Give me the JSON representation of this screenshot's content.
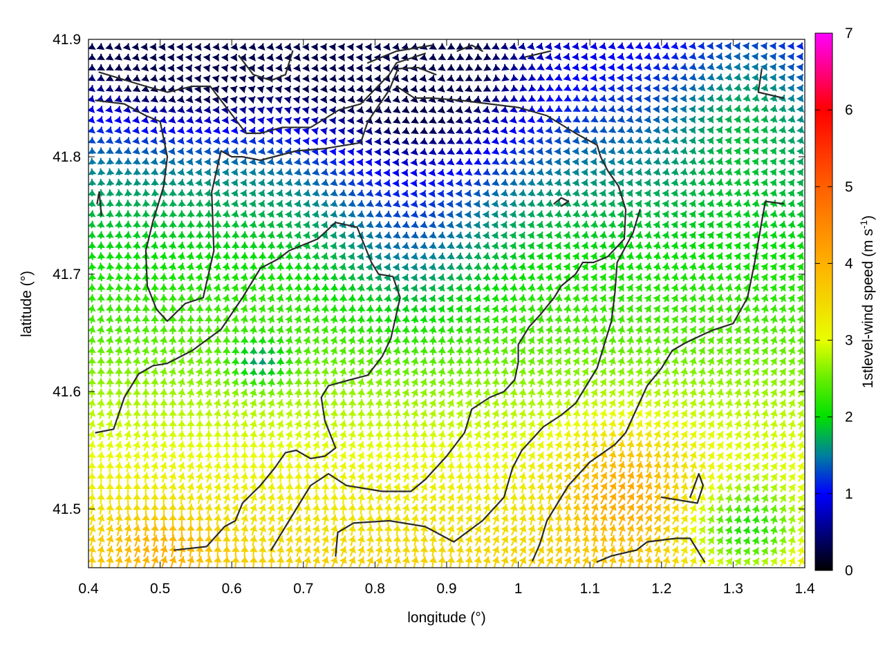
{
  "chart_data": {
    "type": "vector-field",
    "title": "",
    "xlabel": "longitude (°)",
    "ylabel": "latitude (°)",
    "xlim": [
      0.4,
      1.4
    ],
    "ylim": [
      41.45,
      41.9
    ],
    "xticks": [
      "0.4",
      "0.5",
      "0.6",
      "0.7",
      "0.8",
      "0.9",
      "1",
      "1.1",
      "1.2",
      "1.3",
      "1.4"
    ],
    "yticks": [
      "41.5",
      "41.6",
      "41.7",
      "41.8",
      "41.9"
    ],
    "grid": false,
    "colorbar": {
      "label_main": "1stlevel-wind speed (m s",
      "label_sup": "-1",
      "label_end": ")",
      "range": [
        0,
        7
      ],
      "ticks": [
        "0",
        "1",
        "2",
        "3",
        "4",
        "5",
        "6",
        "7"
      ],
      "colormap": [
        {
          "value": 0,
          "color": "#000000"
        },
        {
          "value": 1,
          "color": "#0000ff"
        },
        {
          "value": 1.5,
          "color": "#007f9f"
        },
        {
          "value": 2,
          "color": "#00e000"
        },
        {
          "value": 2.5,
          "color": "#66ee00"
        },
        {
          "value": 3,
          "color": "#e8ff00"
        },
        {
          "value": 4,
          "color": "#ffb000"
        },
        {
          "value": 5,
          "color": "#ff6000"
        },
        {
          "value": 6,
          "color": "#ff0000"
        },
        {
          "value": 7,
          "color": "#ff00ff"
        }
      ]
    },
    "vector_grid": {
      "lon_range": [
        0.405,
        1.395
      ],
      "lat_range": [
        41.455,
        41.895
      ],
      "nx": 80,
      "ny": 50,
      "dominant_direction": "north to north-east",
      "speed_regions": [
        {
          "region": "north-west",
          "speed": 1.0
        },
        {
          "region": "north-centre",
          "speed": 0.8
        },
        {
          "region": "centre",
          "speed": 2.0
        },
        {
          "region": "south",
          "speed": 3.4
        },
        {
          "region": "south-east",
          "speed": 4.2
        }
      ]
    },
    "contour_color": "#2a2a2a",
    "contours": [
      [
        [
          0.41,
          41.848
        ],
        [
          0.45,
          41.845
        ],
        [
          0.48,
          41.835
        ],
        [
          0.5,
          41.83
        ],
        [
          0.51,
          41.8
        ],
        [
          0.505,
          41.775
        ],
        [
          0.49,
          41.745
        ],
        [
          0.48,
          41.72
        ],
        [
          0.482,
          41.69
        ],
        [
          0.495,
          41.67
        ],
        [
          0.51,
          41.66
        ],
        [
          0.535,
          41.675
        ],
        [
          0.56,
          41.68
        ],
        [
          0.575,
          41.72
        ],
        [
          0.572,
          41.77
        ],
        [
          0.585,
          41.805
        ],
        [
          0.6,
          41.8
        ],
        [
          0.615,
          41.8
        ],
        [
          0.64,
          41.797
        ],
        [
          0.69,
          41.805
        ],
        [
          0.73,
          41.807
        ],
        [
          0.78,
          41.812
        ],
        [
          0.79,
          41.83
        ],
        [
          0.82,
          41.857
        ],
        [
          0.832,
          41.875
        ],
        [
          0.86,
          41.876
        ],
        [
          0.885,
          41.87
        ]
      ],
      [
        [
          0.415,
          41.872
        ],
        [
          0.48,
          41.86
        ],
        [
          0.51,
          41.855
        ],
        [
          0.545,
          41.86
        ],
        [
          0.57,
          41.86
        ],
        [
          0.62,
          41.82
        ],
        [
          0.64,
          41.82
        ],
        [
          0.67,
          41.825
        ],
        [
          0.71,
          41.825
        ],
        [
          0.75,
          41.84
        ],
        [
          0.78,
          41.845
        ],
        [
          0.82,
          41.87
        ],
        [
          0.83,
          41.88
        ],
        [
          0.87,
          41.888
        ]
      ],
      [
        [
          0.412,
          41.76
        ],
        [
          0.415,
          41.77
        ],
        [
          0.418,
          41.75
        ]
      ],
      [
        [
          0.61,
          41.886
        ],
        [
          0.63,
          41.87
        ],
        [
          0.655,
          41.865
        ],
        [
          0.675,
          41.87
        ],
        [
          0.685,
          41.89
        ]
      ],
      [
        [
          0.79,
          41.88
        ],
        [
          0.83,
          41.89
        ],
        [
          0.88,
          41.895
        ]
      ],
      [
        [
          0.915,
          41.89
        ],
        [
          0.935,
          41.895
        ],
        [
          0.95,
          41.89
        ]
      ],
      [
        [
          1.01,
          41.885
        ],
        [
          1.045,
          41.89
        ]
      ],
      [
        [
          1.34,
          41.875
        ],
        [
          1.335,
          41.855
        ],
        [
          1.37,
          41.85
        ]
      ],
      [
        [
          0.41,
          41.565
        ],
        [
          0.435,
          41.568
        ],
        [
          0.45,
          41.595
        ],
        [
          0.47,
          41.615
        ],
        [
          0.49,
          41.622
        ],
        [
          0.51,
          41.624
        ],
        [
          0.545,
          41.635
        ],
        [
          0.585,
          41.653
        ],
        [
          0.615,
          41.68
        ],
        [
          0.64,
          41.705
        ],
        [
          0.665,
          41.713
        ],
        [
          0.68,
          41.72
        ],
        [
          0.72,
          41.73
        ],
        [
          0.745,
          41.744
        ],
        [
          0.775,
          41.74
        ],
        [
          0.795,
          41.71
        ],
        [
          0.805,
          41.7
        ],
        [
          0.825,
          41.698
        ],
        [
          0.835,
          41.68
        ],
        [
          0.822,
          41.645
        ],
        [
          0.81,
          41.63
        ],
        [
          0.79,
          41.614
        ],
        [
          0.765,
          41.61
        ],
        [
          0.735,
          41.605
        ],
        [
          0.725,
          41.595
        ],
        [
          0.73,
          41.575
        ],
        [
          0.745,
          41.552
        ],
        [
          0.73,
          41.545
        ],
        [
          0.71,
          41.543
        ],
        [
          0.69,
          41.55
        ],
        [
          0.675,
          41.548
        ],
        [
          0.66,
          41.535
        ],
        [
          0.64,
          41.52
        ],
        [
          0.615,
          41.505
        ],
        [
          0.605,
          41.49
        ],
        [
          0.59,
          41.485
        ],
        [
          0.565,
          41.468
        ],
        [
          0.52,
          41.465
        ]
      ],
      [
        [
          0.655,
          41.465
        ],
        [
          0.69,
          41.5
        ],
        [
          0.71,
          41.52
        ],
        [
          0.735,
          41.53
        ],
        [
          0.76,
          41.52
        ],
        [
          0.81,
          41.515
        ],
        [
          0.85,
          41.515
        ],
        [
          0.87,
          41.525
        ],
        [
          0.885,
          41.535
        ],
        [
          0.9,
          41.545
        ],
        [
          0.925,
          41.565
        ],
        [
          0.935,
          41.585
        ],
        [
          0.96,
          41.595
        ],
        [
          0.98,
          41.6
        ],
        [
          0.995,
          41.61
        ],
        [
          1.0,
          41.625
        ],
        [
          1.0,
          41.64
        ],
        [
          1.015,
          41.655
        ],
        [
          1.03,
          41.665
        ],
        [
          1.05,
          41.68
        ],
        [
          1.06,
          41.69
        ],
        [
          1.08,
          41.7
        ],
        [
          1.09,
          41.71
        ],
        [
          1.105,
          41.71
        ],
        [
          1.125,
          41.715
        ],
        [
          1.148,
          41.73
        ],
        [
          1.15,
          41.755
        ],
        [
          1.14,
          41.775
        ],
        [
          1.125,
          41.788
        ],
        [
          1.115,
          41.8
        ],
        [
          1.11,
          41.81
        ],
        [
          1.08,
          41.82
        ],
        [
          1.04,
          41.835
        ],
        [
          1.0,
          41.842
        ],
        [
          0.96,
          41.845
        ],
        [
          0.92,
          41.848
        ],
        [
          0.88,
          41.85
        ],
        [
          0.855,
          41.85
        ],
        [
          0.83,
          41.86
        ]
      ],
      [
        [
          0.745,
          41.46
        ],
        [
          0.748,
          41.48
        ],
        [
          0.77,
          41.488
        ],
        [
          0.82,
          41.49
        ],
        [
          0.87,
          41.485
        ],
        [
          0.91,
          41.472
        ],
        [
          0.95,
          41.49
        ],
        [
          0.98,
          41.51
        ],
        [
          0.992,
          41.535
        ],
        [
          1.005,
          41.55
        ],
        [
          1.035,
          41.57
        ],
        [
          1.06,
          41.58
        ],
        [
          1.08,
          41.59
        ],
        [
          1.1,
          41.61
        ],
        [
          1.11,
          41.62
        ],
        [
          1.13,
          41.66
        ],
        [
          1.135,
          41.685
        ],
        [
          1.138,
          41.71
        ],
        [
          1.16,
          41.735
        ],
        [
          1.17,
          41.755
        ]
      ],
      [
        [
          1.02,
          41.456
        ],
        [
          1.03,
          41.47
        ],
        [
          1.04,
          41.49
        ],
        [
          1.05,
          41.5
        ],
        [
          1.07,
          41.52
        ],
        [
          1.1,
          41.54
        ],
        [
          1.135,
          41.555
        ],
        [
          1.15,
          41.565
        ],
        [
          1.165,
          41.585
        ],
        [
          1.18,
          41.605
        ],
        [
          1.2,
          41.62
        ],
        [
          1.215,
          41.635
        ],
        [
          1.235,
          41.642
        ],
        [
          1.27,
          41.652
        ],
        [
          1.3,
          41.658
        ],
        [
          1.32,
          41.68
        ],
        [
          1.33,
          41.71
        ],
        [
          1.34,
          41.745
        ],
        [
          1.345,
          41.762
        ],
        [
          1.37,
          41.76
        ]
      ],
      [
        [
          1.11,
          41.455
        ],
        [
          1.13,
          41.46
        ],
        [
          1.165,
          41.465
        ],
        [
          1.18,
          41.472
        ],
        [
          1.22,
          41.475
        ],
        [
          1.24,
          41.475
        ],
        [
          1.26,
          41.455
        ]
      ],
      [
        [
          1.2,
          41.51
        ],
        [
          1.25,
          41.505
        ],
        [
          1.258,
          41.52
        ],
        [
          1.252,
          41.53
        ],
        [
          1.24,
          41.51
        ]
      ],
      [
        [
          1.05,
          41.76
        ],
        [
          1.06,
          41.765
        ],
        [
          1.07,
          41.762
        ],
        [
          1.06,
          41.758
        ]
      ]
    ]
  }
}
